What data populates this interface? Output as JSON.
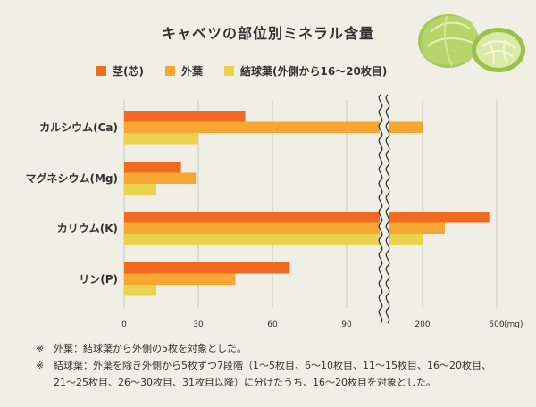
{
  "chart_data": {
    "type": "bar",
    "orientation": "horizontal",
    "title": "キャベツの部位別ミネラル含量",
    "unit": "(mg)",
    "categories": [
      "カルシウム(Ca)",
      "マグネシウム(Mg)",
      "カリウム(K)",
      "リン(P)"
    ],
    "series": [
      {
        "name": "茎(芯)",
        "color": "#f26a21",
        "values": [
          49,
          23,
          470,
          67
        ]
      },
      {
        "name": "外葉",
        "color": "#f5a633",
        "values": [
          201,
          29,
          290,
          45
        ]
      },
      {
        "name": "結球葉(外側から16〜20枚目)",
        "color": "#ead24f",
        "values": [
          30,
          13,
          201,
          13
        ]
      }
    ],
    "x_ticks": [
      "0",
      "30",
      "60",
      "90",
      "200",
      "500"
    ],
    "axis_break": {
      "from": 105,
      "to": 175
    },
    "xlim": [
      0,
      500
    ],
    "legend_position": "top",
    "grid": true
  },
  "notes": [
    {
      "mark": "※",
      "lines": [
        "外葉：結球葉から外側の5枚を対象とした。"
      ]
    },
    {
      "mark": "※",
      "lines": [
        "結球葉：外葉を除き外側から5枚ずつ7段階（1〜5枚目、6〜10枚目、11〜15枚目、16〜20枚目、",
        "21〜25枚目、26〜30枚目、31枚目以降）に分けたうち、16〜20枚目を対象とした。"
      ]
    }
  ],
  "image": {
    "icon": "cabbage-icon"
  }
}
